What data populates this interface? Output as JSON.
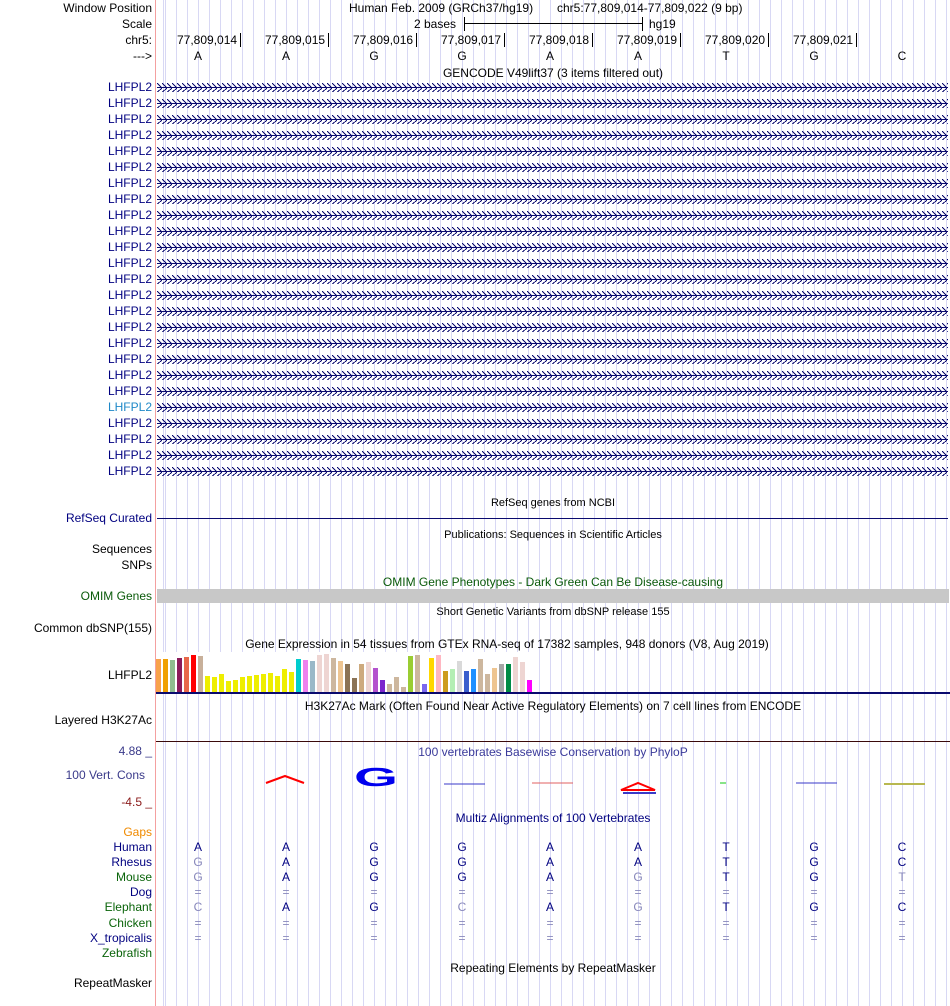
{
  "header": {
    "window_position_label": "Window Position",
    "assembly": "Human Feb. 2009 (GRCh37/hg19)",
    "position": "chr5:77,809,014-77,809,022 (9 bp)",
    "scale_label": "Scale",
    "scale_text": "2 bases",
    "scale_db": "hg19",
    "chrom_label": "chr5:",
    "strand_label": "--->",
    "coords": [
      "77,809,014",
      "77,809,015",
      "77,809,016",
      "77,809,017",
      "77,809,018",
      "77,809,019",
      "77,809,020",
      "77,809,021"
    ],
    "bases": [
      "A",
      "A",
      "G",
      "G",
      "A",
      "A",
      "T",
      "G",
      "C"
    ]
  },
  "gencode": {
    "title": "GENCODE V49lift37 (3 items filtered out)",
    "highlight_index": 20,
    "highlight_color": "#1e88c8",
    "rows": [
      "LHFPL2",
      "LHFPL2",
      "LHFPL2",
      "LHFPL2",
      "LHFPL2",
      "LHFPL2",
      "LHFPL2",
      "LHFPL2",
      "LHFPL2",
      "LHFPL2",
      "LHFPL2",
      "LHFPL2",
      "LHFPL2",
      "LHFPL2",
      "LHFPL2",
      "LHFPL2",
      "LHFPL2",
      "LHFPL2",
      "LHFPL2",
      "LHFPL2",
      "LHFPL2",
      "LHFPL2",
      "LHFPL2",
      "LHFPL2",
      "LHFPL2"
    ]
  },
  "refseq": {
    "title": "RefSeq genes from NCBI",
    "label": "RefSeq Curated"
  },
  "pubs": {
    "title": "Publications: Sequences in Scientific Articles",
    "label": "Sequences"
  },
  "snps": {
    "label": "SNPs"
  },
  "omim": {
    "title": "OMIM Gene Phenotypes - Dark Green Can Be Disease-causing",
    "label": "OMIM Genes",
    "color": "#0a5a0a"
  },
  "dbsnp": {
    "title": "Short Genetic Variants from dbSNP release 155",
    "label": "Common dbSNP(155)"
  },
  "gtex": {
    "title": "Gene Expression in 54 tissues from GTEx RNA-seq of 17382 samples, 948 donors (V8, Aug 2019)",
    "label": "LHFPL2",
    "values": [
      108,
      108,
      105,
      111,
      114,
      120,
      116,
      54,
      51,
      60,
      39,
      42,
      51,
      54,
      57,
      60,
      63,
      54,
      75,
      66,
      108,
      105,
      102,
      120,
      123,
      111,
      102,
      93,
      48,
      93,
      99,
      78,
      42,
      30,
      51,
      18,
      117,
      120,
      30,
      111,
      120,
      69,
      75,
      102,
      69,
      75,
      108,
      60,
      78,
      93,
      90,
      114,
      99,
      42
    ],
    "colors": [
      "#f8a14a",
      "#f0a000",
      "#8fbc8f",
      "#8b1a5a",
      "#e8684a",
      "#ff0000",
      "#c8b09a",
      "#eeee00",
      "#eeee00",
      "#eeee00",
      "#eeee00",
      "#eeee00",
      "#eeee00",
      "#eeee00",
      "#eeee00",
      "#eeee00",
      "#eeee00",
      "#eeee00",
      "#eeee00",
      "#eeee00",
      "#00cdcd",
      "#ee82ee",
      "#9ab8c8",
      "#eed5d2",
      "#eed5d2",
      "#cdb79e",
      "#eec591",
      "#8b7355",
      "#8b7355",
      "#cdaa7d",
      "#eed5d2",
      "#b452cd",
      "#7d26cd",
      "#cdb79e",
      "#cdb79e",
      "#cdb79e",
      "#9acd32",
      "#cdb79e",
      "#7a67ee",
      "#ffd700",
      "#ffb6c1",
      "#cd9b1d",
      "#b4eeb4",
      "#d9d9d9",
      "#3a5fcd",
      "#1e90ff",
      "#cdb79e",
      "#cdb79e",
      "#eec591",
      "#a6a6a6",
      "#008b45",
      "#eed5d2",
      "#eed5d2",
      "#ff00ff"
    ]
  },
  "h3k27ac": {
    "title": "H3K27Ac Mark (Often Found Near Active Regulatory Elements) on 7 cell lines from ENCODE",
    "label": "Layered H3K27Ac"
  },
  "phylop": {
    "title": "100 vertebrates Basewise Conservation by PhyloP",
    "label": "100 Vert. Cons",
    "max": "4.88 _",
    "min": "-4.5 _"
  },
  "multiz": {
    "title": "Multiz Alignments of 100 Vertebrates",
    "gaps_label": "Gaps",
    "species": [
      {
        "name": "Human",
        "color": "#000080",
        "seq": "AAGGAATGC"
      },
      {
        "name": "Rhesus",
        "color": "#000080",
        "seq": "GAGGAATGC"
      },
      {
        "name": "Mouse",
        "color": "#0a640a",
        "seq": "GAGGAGTGT"
      },
      {
        "name": "Dog",
        "color": "#000080",
        "seq": "========="
      },
      {
        "name": "Elephant",
        "color": "#0a640a",
        "seq": "CAGCAGTGC"
      },
      {
        "name": "Chicken",
        "color": "#0a640a",
        "seq": "========="
      },
      {
        "name": "X_tropicalis",
        "color": "#000080",
        "seq": "========="
      },
      {
        "name": "Zebrafish",
        "color": "#0a640a",
        "seq": ""
      }
    ]
  },
  "repeatmasker": {
    "title": "Repeating Elements by RepeatMasker",
    "label": "RepeatMasker"
  }
}
